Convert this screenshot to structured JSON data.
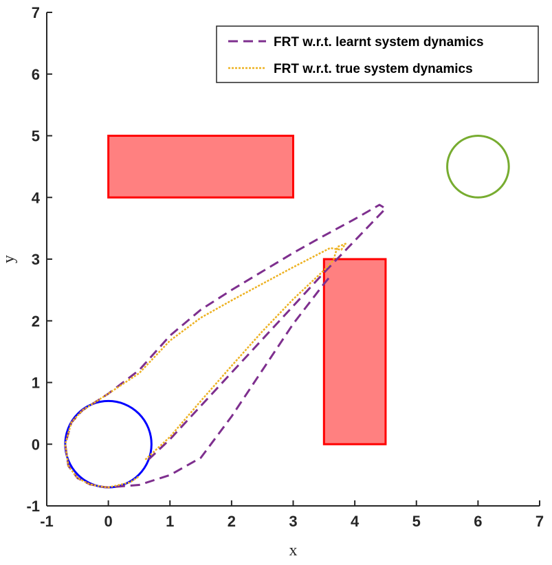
{
  "chart_data": {
    "type": "line",
    "xlabel": "x",
    "ylabel": "y",
    "xlim": [
      -1,
      7
    ],
    "ylim": [
      -1,
      7
    ],
    "xticks": [
      "-1",
      "0",
      "1",
      "2",
      "3",
      "4",
      "5",
      "6",
      "7"
    ],
    "yticks": [
      "-1",
      "0",
      "1",
      "2",
      "3",
      "4",
      "5",
      "6",
      "7"
    ],
    "grid": false,
    "legend_position": "top-right",
    "obstacles": [
      {
        "x": 0,
        "y": 4,
        "width": 3,
        "height": 1,
        "fill": "#ff8080",
        "stroke": "#ff0000"
      },
      {
        "x": 3.5,
        "y": 0,
        "width": 1,
        "height": 3,
        "fill": "#ff8080",
        "stroke": "#ff0000"
      }
    ],
    "start_region": {
      "center": [
        0,
        0
      ],
      "radius": 0.7,
      "color": "#0000ff"
    },
    "goal_region": {
      "center": [
        6,
        4.5
      ],
      "radius": 0.5,
      "color": "#77ac30"
    },
    "series": [
      {
        "name": "FRT w.r.t. learnt system dynamics",
        "color": "#7e2f8e",
        "dash": "dashed",
        "x": [
          0.65,
          1.0,
          1.5,
          2.0,
          2.5,
          3.0,
          3.5,
          4.0,
          4.5,
          4.4,
          4.0,
          3.5,
          3.0,
          2.5,
          2.0,
          1.5,
          1.0,
          0.5,
          0.0,
          -0.42,
          -0.6,
          -0.7,
          -0.65,
          -0.5,
          -0.3,
          -0.1,
          0.0,
          0.5,
          1.0,
          1.5,
          2.0,
          2.5,
          3.0,
          3.5,
          3.6
        ],
        "y": [
          -0.25,
          0.08,
          0.62,
          1.16,
          1.7,
          2.24,
          2.78,
          3.3,
          3.82,
          3.88,
          3.65,
          3.38,
          3.1,
          2.8,
          2.5,
          2.18,
          1.76,
          1.2,
          0.82,
          0.55,
          0.35,
          0.0,
          -0.35,
          -0.55,
          -0.65,
          -0.69,
          -0.7,
          -0.66,
          -0.5,
          -0.22,
          0.45,
          1.2,
          1.95,
          2.6,
          2.72
        ]
      },
      {
        "name": "FRT w.r.t. true system dynamics",
        "color": "#edb120",
        "dash": "dotted",
        "x": [
          0.6,
          1.0,
          1.5,
          2.0,
          2.5,
          3.0,
          3.5,
          3.65,
          3.72,
          3.85,
          3.78,
          3.6,
          3.0,
          2.5,
          2.0,
          1.5,
          1.0,
          0.5,
          0.0,
          -0.42,
          -0.6,
          -0.7,
          -0.65,
          -0.5,
          -0.3,
          -0.1,
          0.0,
          0.35,
          0.5
        ],
        "y": [
          -0.25,
          0.12,
          0.7,
          1.27,
          1.83,
          2.35,
          2.82,
          2.98,
          3.2,
          3.25,
          3.15,
          3.18,
          2.87,
          2.6,
          2.33,
          2.05,
          1.68,
          1.15,
          0.82,
          0.55,
          0.35,
          0.0,
          -0.35,
          -0.55,
          -0.65,
          -0.69,
          -0.7,
          -0.62,
          -0.52
        ]
      }
    ]
  }
}
